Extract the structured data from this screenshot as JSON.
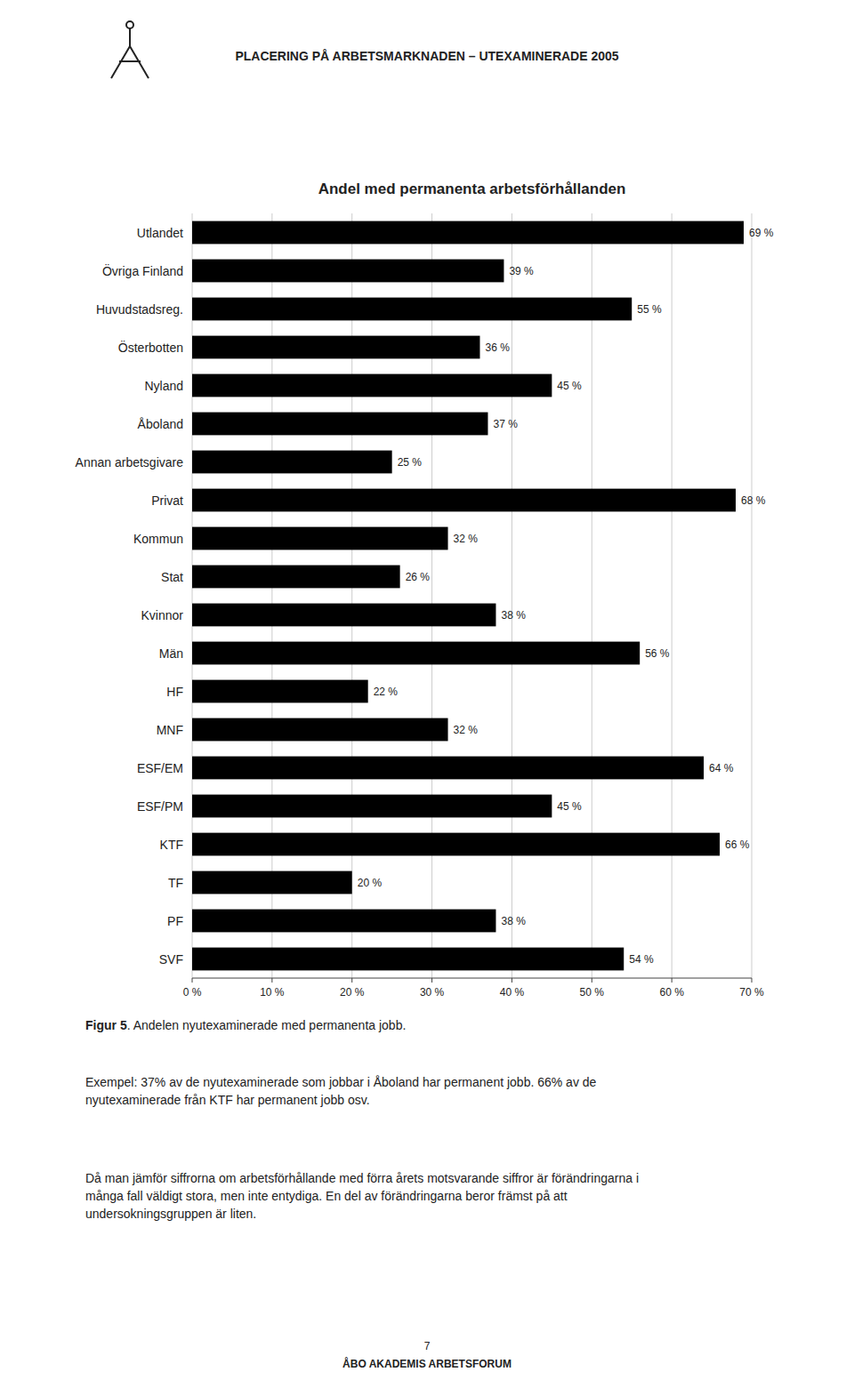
{
  "header": "PLACERING PÅ ARBETSMARKNADEN – UTEXAMINERADE 2005",
  "chart_data": {
    "type": "bar",
    "orientation": "horizontal",
    "title": "Andel med permanenta arbetsförhållanden",
    "categories": [
      "Utlandet",
      "Övriga Finland",
      "Huvudstadsreg.",
      "Österbotten",
      "Nyland",
      "Åboland",
      "Annan arbetsgivare",
      "Privat",
      "Kommun",
      "Stat",
      "Kvinnor",
      "Män",
      "HF",
      "MNF",
      "ESF/EM",
      "ESF/PM",
      "KTF",
      "TF",
      "PF",
      "SVF"
    ],
    "values": [
      69,
      39,
      55,
      36,
      45,
      37,
      25,
      68,
      32,
      26,
      38,
      56,
      22,
      32,
      64,
      45,
      66,
      20,
      38,
      54
    ],
    "value_labels": [
      "69 %",
      "39 %",
      "55 %",
      "36 %",
      "45 %",
      "37 %",
      "25 %",
      "68 %",
      "32 %",
      "26 %",
      "38 %",
      "56 %",
      "22 %",
      "32 %",
      "64 %",
      "45 %",
      "66 %",
      "20 %",
      "38 %",
      "54 %"
    ],
    "data_labels": true,
    "color": "#000000",
    "xlim": [
      0,
      70
    ],
    "xticks": [
      {
        "value": 0,
        "label": "0 %"
      },
      {
        "value": 10,
        "label": "10 %"
      },
      {
        "value": 20,
        "label": "20 %"
      },
      {
        "value": 30,
        "label": "30 %"
      },
      {
        "value": 40,
        "label": "40 %"
      },
      {
        "value": 50,
        "label": "50 %"
      },
      {
        "value": 60,
        "label": "60 %"
      },
      {
        "value": 70,
        "label": "70 %"
      }
    ],
    "grid": true
  },
  "caption": {
    "label": "Figur 5",
    "text": ". Andelen nyutexaminerade med permanenta jobb."
  },
  "text_blocks": [
    "Exempel: 37% av de nyutexaminerade som jobbar i Åboland har permanent jobb. 66% av de\nnyutexaminerade från KTF har permanent jobb osv.",
    "Då man jämför siffrorna om arbetsförhållande med förra årets motsvarande siffror är förändringarna i\nmånga fall väldigt stora, men inte entydiga. En del av förändringarna beror främst på att\nundersokningsgruppen är liten."
  ],
  "footer": {
    "number": "7",
    "org": "ÅBO AKADEMIS ARBETSFORUM"
  }
}
